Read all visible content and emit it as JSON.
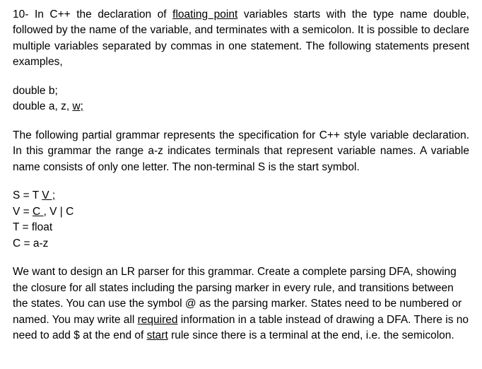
{
  "q": {
    "intro_before_u": "10- In C++ the declaration of ",
    "intro_u": "floating point",
    "intro_after_u": " variables starts with the type name double, followed by the name of the variable, and terminates with a semicolon. It is possible to declare multiple variables separated by commas in one statement. The following statements present examples,",
    "code1": "double b;",
    "code2_before_u": "double a, z, ",
    "code2_u": "w;",
    "grammar_intro": "The following partial grammar represents the specification for C++ style variable declaration. In this grammar the range a-z indicates terminals that represent variable names. A variable name consists of only one letter. The non-terminal S is the start symbol.",
    "g1_before_u": "S = T ",
    "g1_u": "V ;",
    "g2_before_u": "V = ",
    "g2_u": "C ,",
    "g2_after_u": " V | C",
    "g3": "T = float",
    "g4": "C = a-z",
    "task_p1_a": "We want to design an LR parser for this grammar. Create a complete parsing DFA, showing the closure for all states including the parsing marker in every rule, and transitions between the states. You can use the symbol @ as the parsing marker. States need to be numbered or named. You may write all ",
    "task_p1_u1": "required",
    "task_p1_b": " information in a table instead of drawing a DFA. There is no need to add $ at the end of ",
    "task_p1_u2": "start",
    "task_p1_c": " rule since there is a terminal at the end, i.e. the semicolon."
  }
}
